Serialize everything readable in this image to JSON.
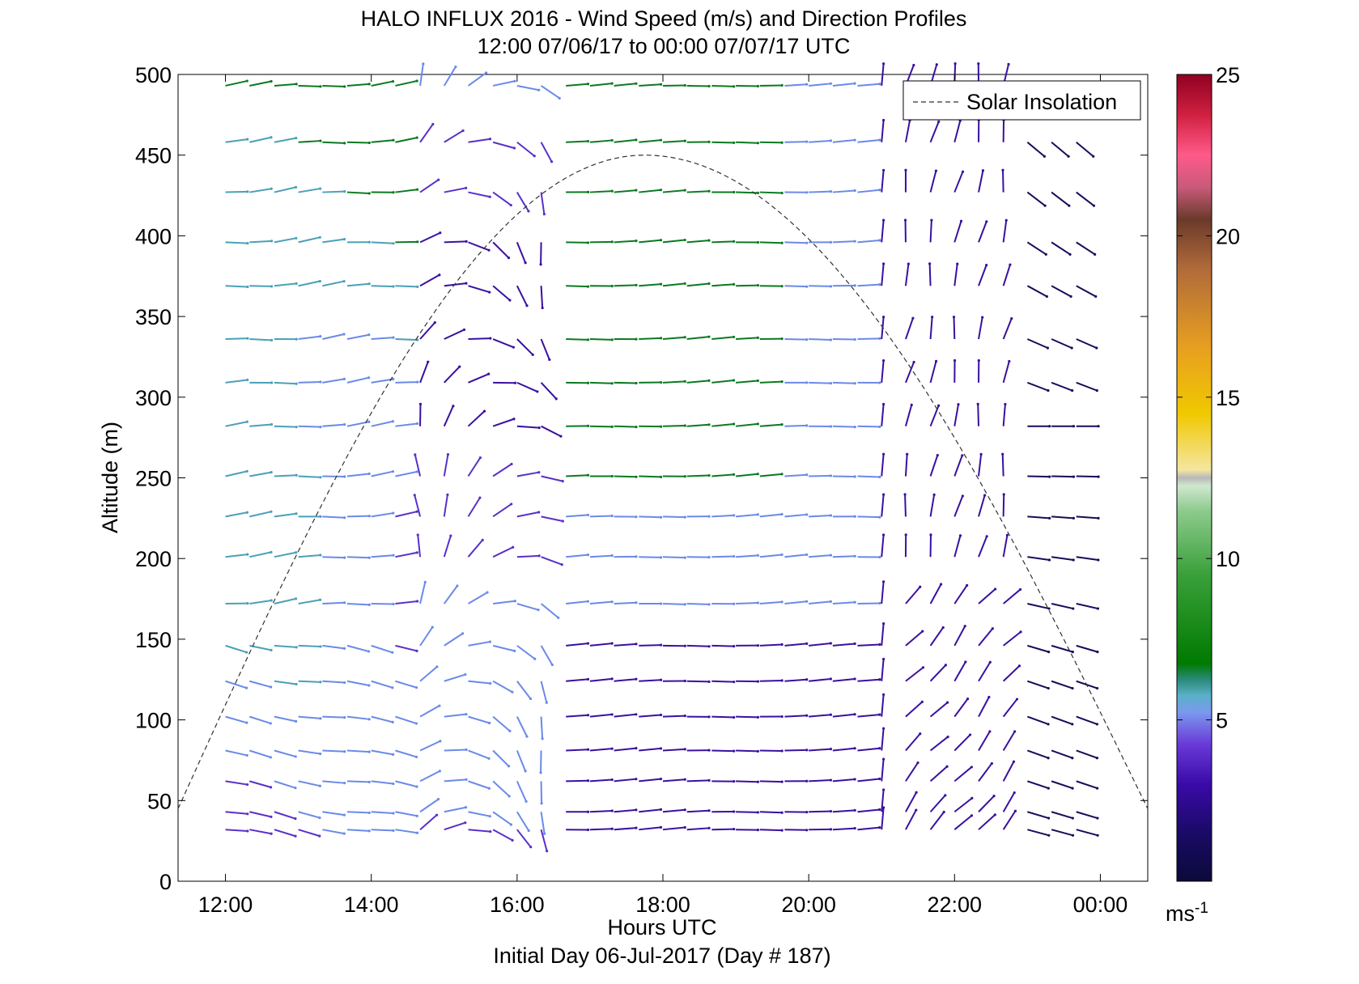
{
  "chart_data": {
    "type": "wind-barb",
    "title": "HALO INFLUX 2016 - Wind Speed (m/s) and Direction Profiles",
    "subtitle": "12:00 07/06/17 to 00:00 07/07/17  UTC",
    "xlabel": "Hours UTC",
    "ylabel": "Altitude (m)",
    "footer": "Initial Day 06-Jul-2017 (Day # 187)",
    "xlim": [
      11.35,
      24.65
    ],
    "ylim": [
      0,
      500
    ],
    "x_ticks": [
      {
        "value": 12,
        "label": "12:00"
      },
      {
        "value": 14,
        "label": "14:00"
      },
      {
        "value": 16,
        "label": "16:00"
      },
      {
        "value": 18,
        "label": "18:00"
      },
      {
        "value": 20,
        "label": "20:00"
      },
      {
        "value": 22,
        "label": "22:00"
      },
      {
        "value": 24,
        "label": "00:00"
      }
    ],
    "y_ticks": [
      0,
      50,
      100,
      150,
      200,
      250,
      300,
      350,
      400,
      450,
      500
    ],
    "legend": {
      "entry": "Solar Insolation",
      "style": "dashed",
      "position": "top-right"
    },
    "colorbar": {
      "min": 0,
      "max": 25,
      "ticks": [
        5,
        10,
        15,
        20,
        25
      ],
      "unit": "ms",
      "unit_exponent": "-1"
    },
    "altitudes_m": [
      32,
      43,
      62,
      81,
      102,
      124,
      146,
      172,
      201,
      226,
      251,
      282,
      309,
      336,
      369,
      396,
      427,
      458,
      493
    ],
    "times_h": [
      12.0,
      12.33,
      12.67,
      13.0,
      13.33,
      13.67,
      14.0,
      14.33,
      14.67,
      15.0,
      15.33,
      15.67,
      16.0,
      16.33,
      16.67,
      17.0,
      17.33,
      17.67,
      18.0,
      18.33,
      18.67,
      19.0,
      19.33,
      19.67,
      20.0,
      20.33,
      20.67,
      21.0,
      21.33,
      21.67,
      22.0,
      22.33,
      22.67,
      23.0,
      23.33,
      23.67
    ],
    "solar_insolation": {
      "start": 11.35,
      "peak": 17.75,
      "end": 24.65,
      "peak_altitude_equiv": 450,
      "edge_altitude_equiv": 45
    }
  }
}
